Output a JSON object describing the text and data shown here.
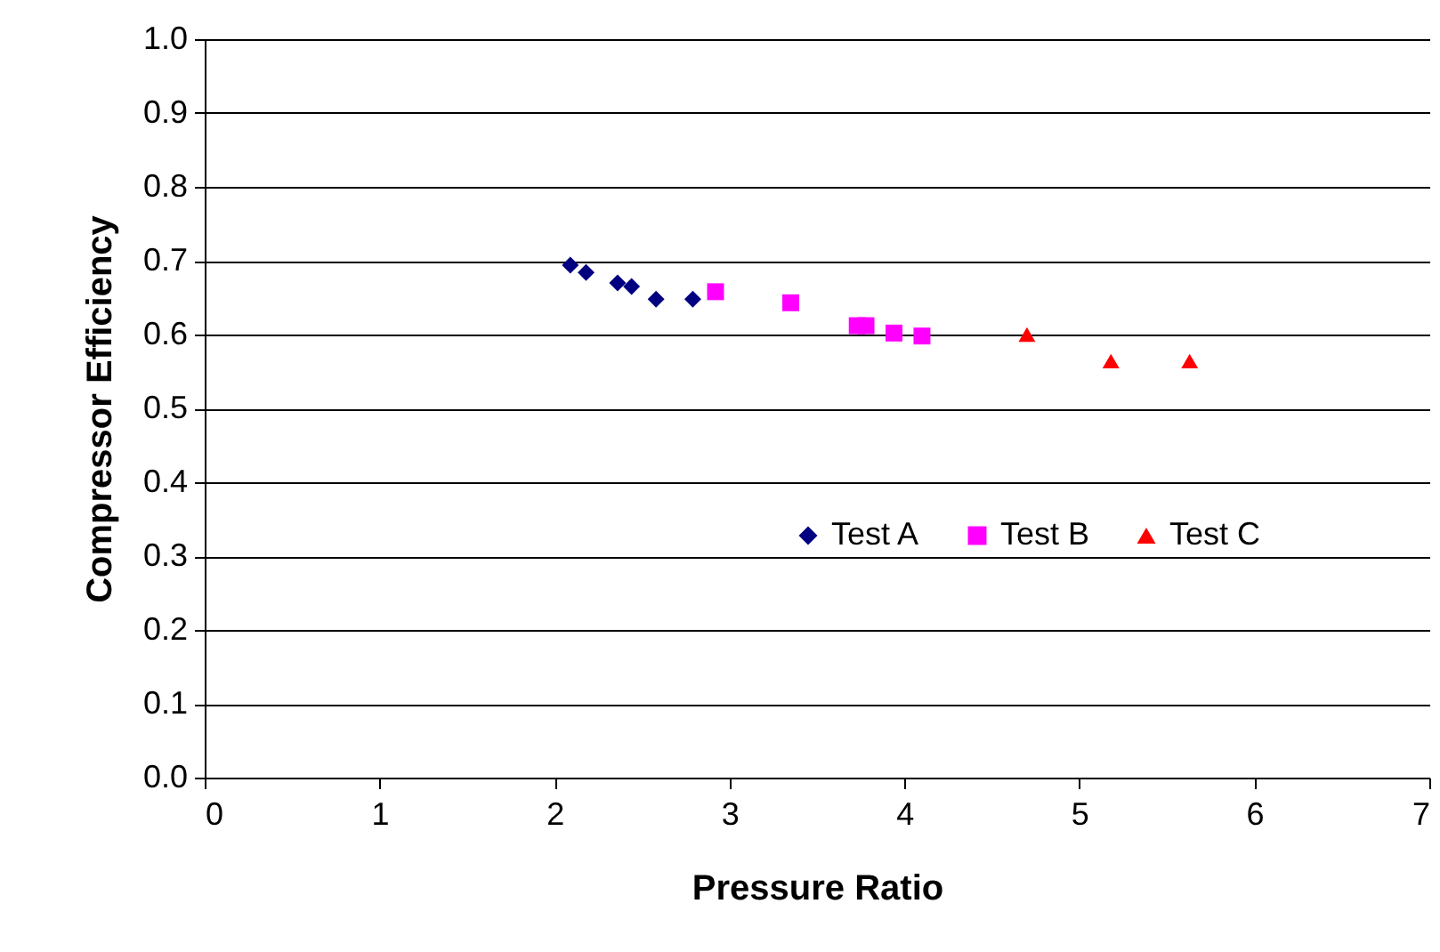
{
  "chart_data": {
    "type": "scatter",
    "xlabel": "Pressure Ratio",
    "ylabel": "Compressor Efficiency",
    "xlim": [
      0,
      7
    ],
    "xticks": [
      0,
      1,
      2,
      3,
      4,
      5,
      6,
      7
    ],
    "ylim": [
      0,
      1
    ],
    "yticks": [
      {
        "value": 0,
        "label": "0.0"
      },
      0.1,
      0.2,
      0.3,
      0.4,
      0.5,
      0.6,
      0.7,
      0.8,
      0.9,
      {
        "value": 1,
        "label": "1.0"
      }
    ],
    "grid": "y",
    "legend": "right",
    "series": [
      {
        "name": "Test A",
        "color": "#000080",
        "marker": "diamond",
        "x": [
          2.09,
          2.18,
          2.36,
          2.44,
          2.58,
          2.79
        ],
        "values": [
          0.694,
          0.684,
          0.67,
          0.665,
          0.648,
          0.648
        ]
      },
      {
        "name": "Test B",
        "color": "#ff00ff",
        "marker": "square",
        "x": [
          2.92,
          3.35,
          3.73,
          3.78,
          3.94,
          4.1
        ],
        "values": [
          0.658,
          0.643,
          0.612,
          0.612,
          0.602,
          0.598
        ]
      },
      {
        "name": "Test C",
        "color": "#ff0000",
        "marker": "triangle",
        "x": [
          4.7,
          5.18,
          5.63
        ],
        "values": [
          0.6,
          0.564,
          0.564
        ]
      }
    ]
  }
}
